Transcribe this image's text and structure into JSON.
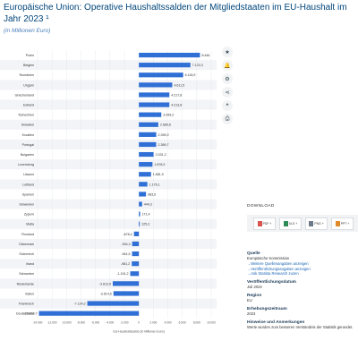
{
  "title": "Europäische Union: Operative Haushaltssalden der Mitgliedstaaten im EU-Haushalt im Jahr 2023 ¹",
  "subtitle": "(in Millionen Euro)",
  "colors": {
    "bar": "#2f6fd6",
    "title": "#00457b",
    "band": "#f2f4f7"
  },
  "chart_data": {
    "type": "bar",
    "orientation": "horizontal",
    "title": "Europäische Union: Operative Haushaltssalden der Mitgliedstaaten im EU-Haushalt im Jahr 2023 ¹",
    "xlabel": "EU-Haushaltssaldo (in Millionen Euro)",
    "ylabel": "",
    "xlim": [
      -14000,
      10000
    ],
    "xticks": [
      -14000,
      -12000,
      -10000,
      -8000,
      -6000,
      -4000,
      -2000,
      0,
      2000,
      4000,
      6000,
      8000,
      10000
    ],
    "xtick_labels": [
      "-14.000",
      "-12.000",
      "-10.000",
      "-8.000",
      "-6.000",
      "-4.000",
      "-2.000",
      "0",
      "2.000",
      "4.000",
      "6.000",
      "8.000",
      "10.000"
    ],
    "categories": [
      "Polen",
      "Belgien",
      "Rumänien",
      "Ungarn",
      "Griechenland",
      "Estland",
      "Tschechien",
      "Slowakei",
      "Kroatien",
      "Portugal",
      "Bulgarien",
      "Luxemburg",
      "Litauen",
      "Lettland",
      "Spanien",
      "Slowenien",
      "Zypern",
      "Malta",
      "Finnland",
      "Dänemark",
      "Österreich",
      "Irland",
      "Schweden",
      "Niederlande",
      "Italien",
      "Frankreich",
      "Deutschland"
    ],
    "values": [
      8446,
      7123.3,
      6118.9,
      4611.5,
      4217.8,
      4213.8,
      3099.2,
      2680.6,
      2395.9,
      2389.7,
      2031.2,
      1878.9,
      1681.9,
      1176.1,
      983.5,
      444.3,
      171.4,
      125.3,
      -678.4,
      -934.3,
      -944.5,
      -981.2,
      -1191.2,
      -3613.5,
      -3514.5,
      -7124.2,
      -13810.7
    ],
    "value_labels": [
      "8.446",
      "7.123,3",
      "6.118,9",
      "4.611,5",
      "4.217,8",
      "4.213,8",
      "3.099,2",
      "2.680,6",
      "2.395,9",
      "2.389,7",
      "2.031,2",
      "1.878,9",
      "1.681,9",
      "1.176,1",
      "983,5",
      "444,3",
      "171,4",
      "125,3",
      "-678,4",
      "-934,3",
      "-944,5",
      "-981,2",
      "-1.191,2",
      "-3.613,5",
      "-3.514,5",
      "-7.124,2",
      "-13.810,7"
    ]
  },
  "sidebar": {
    "icons": [
      "star-icon",
      "bell-icon",
      "settings-icon",
      "share-icon",
      "quote-icon",
      "print-icon"
    ],
    "glyphs": [
      "★",
      "🔔",
      "⚙",
      "⋖",
      "❝",
      "⎙"
    ]
  },
  "download": {
    "heading": "DOWNLOAD",
    "buttons": [
      {
        "label": "PDF",
        "badge": "+",
        "color": "#d9534f"
      },
      {
        "label": "XLS",
        "badge": "+",
        "color": "#2e8b57"
      },
      {
        "label": "PNG",
        "badge": "+",
        "color": "#6c7a89"
      },
      {
        "label": "PPT",
        "badge": "+",
        "color": "#e08a2c"
      }
    ]
  },
  "info": {
    "source_heading": "Quelle",
    "source_text": "Europäische Kommission",
    "links": [
      "Weitere Quellenangaben anzeigen",
      "Veröffentlichungsangaben anzeigen",
      "Ask Statista Research zuzen"
    ],
    "published_heading": "Veröffentlichungsdatum",
    "published_text": "Juli 2024",
    "region_heading": "Region",
    "region_text": "EU",
    "period_heading": "Erhebungszeitraum",
    "period_text": "2023",
    "notes_heading": "Hinweise und Anmerkungen",
    "notes_text": "Werte wurden zum besseren Verständnis der Statistik gerundet."
  }
}
